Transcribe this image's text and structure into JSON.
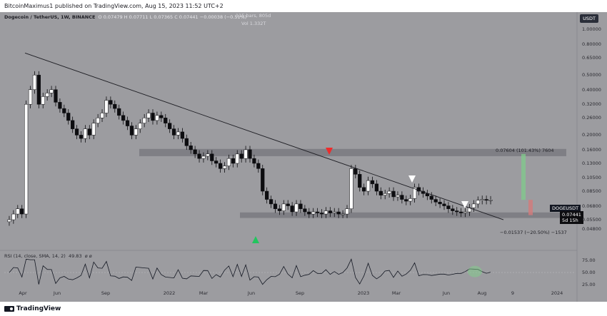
{
  "header": {
    "attribution": "BitcoinMaximus1 published on TradingView.com, Aug 15, 2023 11:52 UTC+2"
  },
  "legend": {
    "symbol": "Dogecoin / TetherUS, 1W, BINANCE",
    "ohlc": "O 0.07479  H 0.07711  L 0.07365  C 0.07441  −0.00038 (−0.51%)",
    "bars_note": "115 bars, 805d",
    "volume": "Vol 1.332T"
  },
  "currency_badge": "USDT",
  "last_price": {
    "symbol": "DOGEUSDT",
    "value": "0.07441",
    "countdown": "5d 15h"
  },
  "annotations": {
    "upside_target": "0.07604 (101.43%) 7604",
    "downside_target": "−0.01537 (−20.50%) −1537"
  },
  "rsi": {
    "label": "RSI (14, close, SMA, 14, 2)",
    "value": "49.83",
    "extra": "ø  ø"
  },
  "colors": {
    "background": "#9c9ca0",
    "bull_candle": "#ffffff",
    "bear_candle": "#0d0d10",
    "resistance_zone": "#7c7c82",
    "green_arrow": "#22c55e",
    "red_arrow": "#ef2b2b",
    "white_arrow": "#ffffff",
    "target_up": "#7fcf8a",
    "target_down": "#d47a7a"
  },
  "chart_data": {
    "type": "candlestick",
    "y_scale": "log",
    "ylim": [
      0.036,
      1.05
    ],
    "y_ticks": [
      "1.00000",
      "0.80000",
      "0.65000",
      "0.50000",
      "0.40000",
      "0.32000",
      "0.26000",
      "0.20000",
      "0.16000",
      "0.13000",
      "0.10500",
      "0.08500",
      "0.06800",
      "0.05500",
      "0.04800"
    ],
    "x_ticks": [
      "Apr",
      "Jun",
      "Sep",
      "2022",
      "Mar",
      "Jun",
      "Sep",
      "2023",
      "Mar",
      "Jun",
      "Aug",
      "9",
      "2024"
    ],
    "rsi_ticks": [
      "75.00",
      "50.00",
      "25.00"
    ],
    "price_path": [
      0.055,
      0.06,
      0.065,
      0.06,
      0.32,
      0.4,
      0.5,
      0.32,
      0.36,
      0.38,
      0.4,
      0.33,
      0.3,
      0.28,
      0.25,
      0.22,
      0.2,
      0.19,
      0.22,
      0.2,
      0.24,
      0.26,
      0.28,
      0.34,
      0.32,
      0.3,
      0.27,
      0.25,
      0.23,
      0.2,
      0.22,
      0.24,
      0.26,
      0.28,
      0.25,
      0.27,
      0.26,
      0.24,
      0.22,
      0.2,
      0.21,
      0.19,
      0.17,
      0.16,
      0.15,
      0.14,
      0.145,
      0.15,
      0.135,
      0.13,
      0.12,
      0.125,
      0.14,
      0.13,
      0.15,
      0.14,
      0.16,
      0.14,
      0.13,
      0.12,
      0.085,
      0.075,
      0.07,
      0.065,
      0.063,
      0.07,
      0.068,
      0.062,
      0.07,
      0.065,
      0.062,
      0.06,
      0.062,
      0.061,
      0.06,
      0.063,
      0.061,
      0.062,
      0.06,
      0.06,
      0.065,
      0.12,
      0.11,
      0.09,
      0.085,
      0.1,
      0.095,
      0.085,
      0.08,
      0.082,
      0.085,
      0.078,
      0.08,
      0.075,
      0.073,
      0.076,
      0.09,
      0.085,
      0.082,
      0.079,
      0.075,
      0.072,
      0.07,
      0.068,
      0.065,
      0.063,
      0.062,
      0.061,
      0.062,
      0.066,
      0.07,
      0.074,
      0.075,
      0.074,
      0.0744
    ]
  }
}
